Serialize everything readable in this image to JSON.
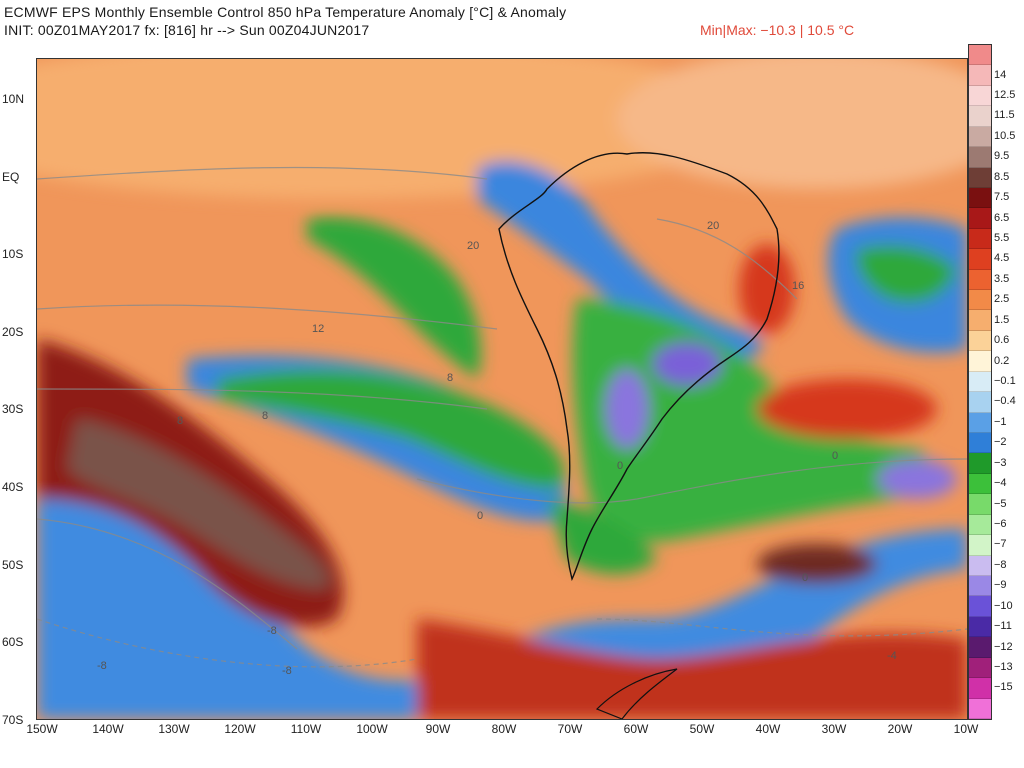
{
  "header": {
    "title": "ECMWF EPS Monthly Ensemble Control 850 hPa Temperature Anomaly [°C] & Anomaly",
    "init": "INIT: 00Z01MAY2017 fx: [816] hr --> Sun 00Z04JUN2017",
    "minmax": "Min|Max: −10.3 | 10.5 °C"
  },
  "map": {
    "lat_labels": [
      "10N",
      "EQ",
      "10S",
      "20S",
      "30S",
      "40S",
      "50S",
      "60S",
      "70S"
    ],
    "lon_labels": [
      "150W",
      "140W",
      "130W",
      "120W",
      "110W",
      "100W",
      "90W",
      "80W",
      "70W",
      "60W",
      "50W",
      "40W",
      "30W",
      "20W",
      "10W"
    ],
    "contour_labels": [
      "20",
      "20",
      "16",
      "12",
      "8",
      "8",
      "8",
      "0",
      "0",
      "0",
      "0",
      "-8",
      "-8",
      "-8",
      "-4"
    ]
  },
  "colorbar": {
    "labels": [
      "14",
      "12.5",
      "11.5",
      "10.5",
      "9.5",
      "8.5",
      "7.5",
      "6.5",
      "5.5",
      "4.5",
      "3.5",
      "2.5",
      "1.5",
      "0.6",
      "0.2",
      "−0.1",
      "−0.4",
      "−1",
      "−2",
      "−3",
      "−4",
      "−5",
      "−6",
      "−7",
      "−8",
      "−9",
      "−10",
      "−11",
      "−12",
      "−13",
      "−15"
    ],
    "colors": [
      "#f08a8a",
      "#f5b8b8",
      "#f8d6d6",
      "#ead2cc",
      "#c9aaa2",
      "#9c7a72",
      "#6e3e36",
      "#7a1010",
      "#a81818",
      "#c82a1a",
      "#de4020",
      "#ec6230",
      "#f28a48",
      "#f6ae6e",
      "#fbd298",
      "#fff4d8",
      "#d8ecf6",
      "#a8d2f0",
      "#5aa0e6",
      "#2f7fd8",
      "#1f9a2a",
      "#3cc03a",
      "#78da6a",
      "#a6ea9a",
      "#d2f4c8",
      "#cabcf0",
      "#9a88e6",
      "#6a52d8",
      "#4a2aa6",
      "#5a1a6e",
      "#a0207a",
      "#d030a8",
      "#f070d8"
    ]
  }
}
